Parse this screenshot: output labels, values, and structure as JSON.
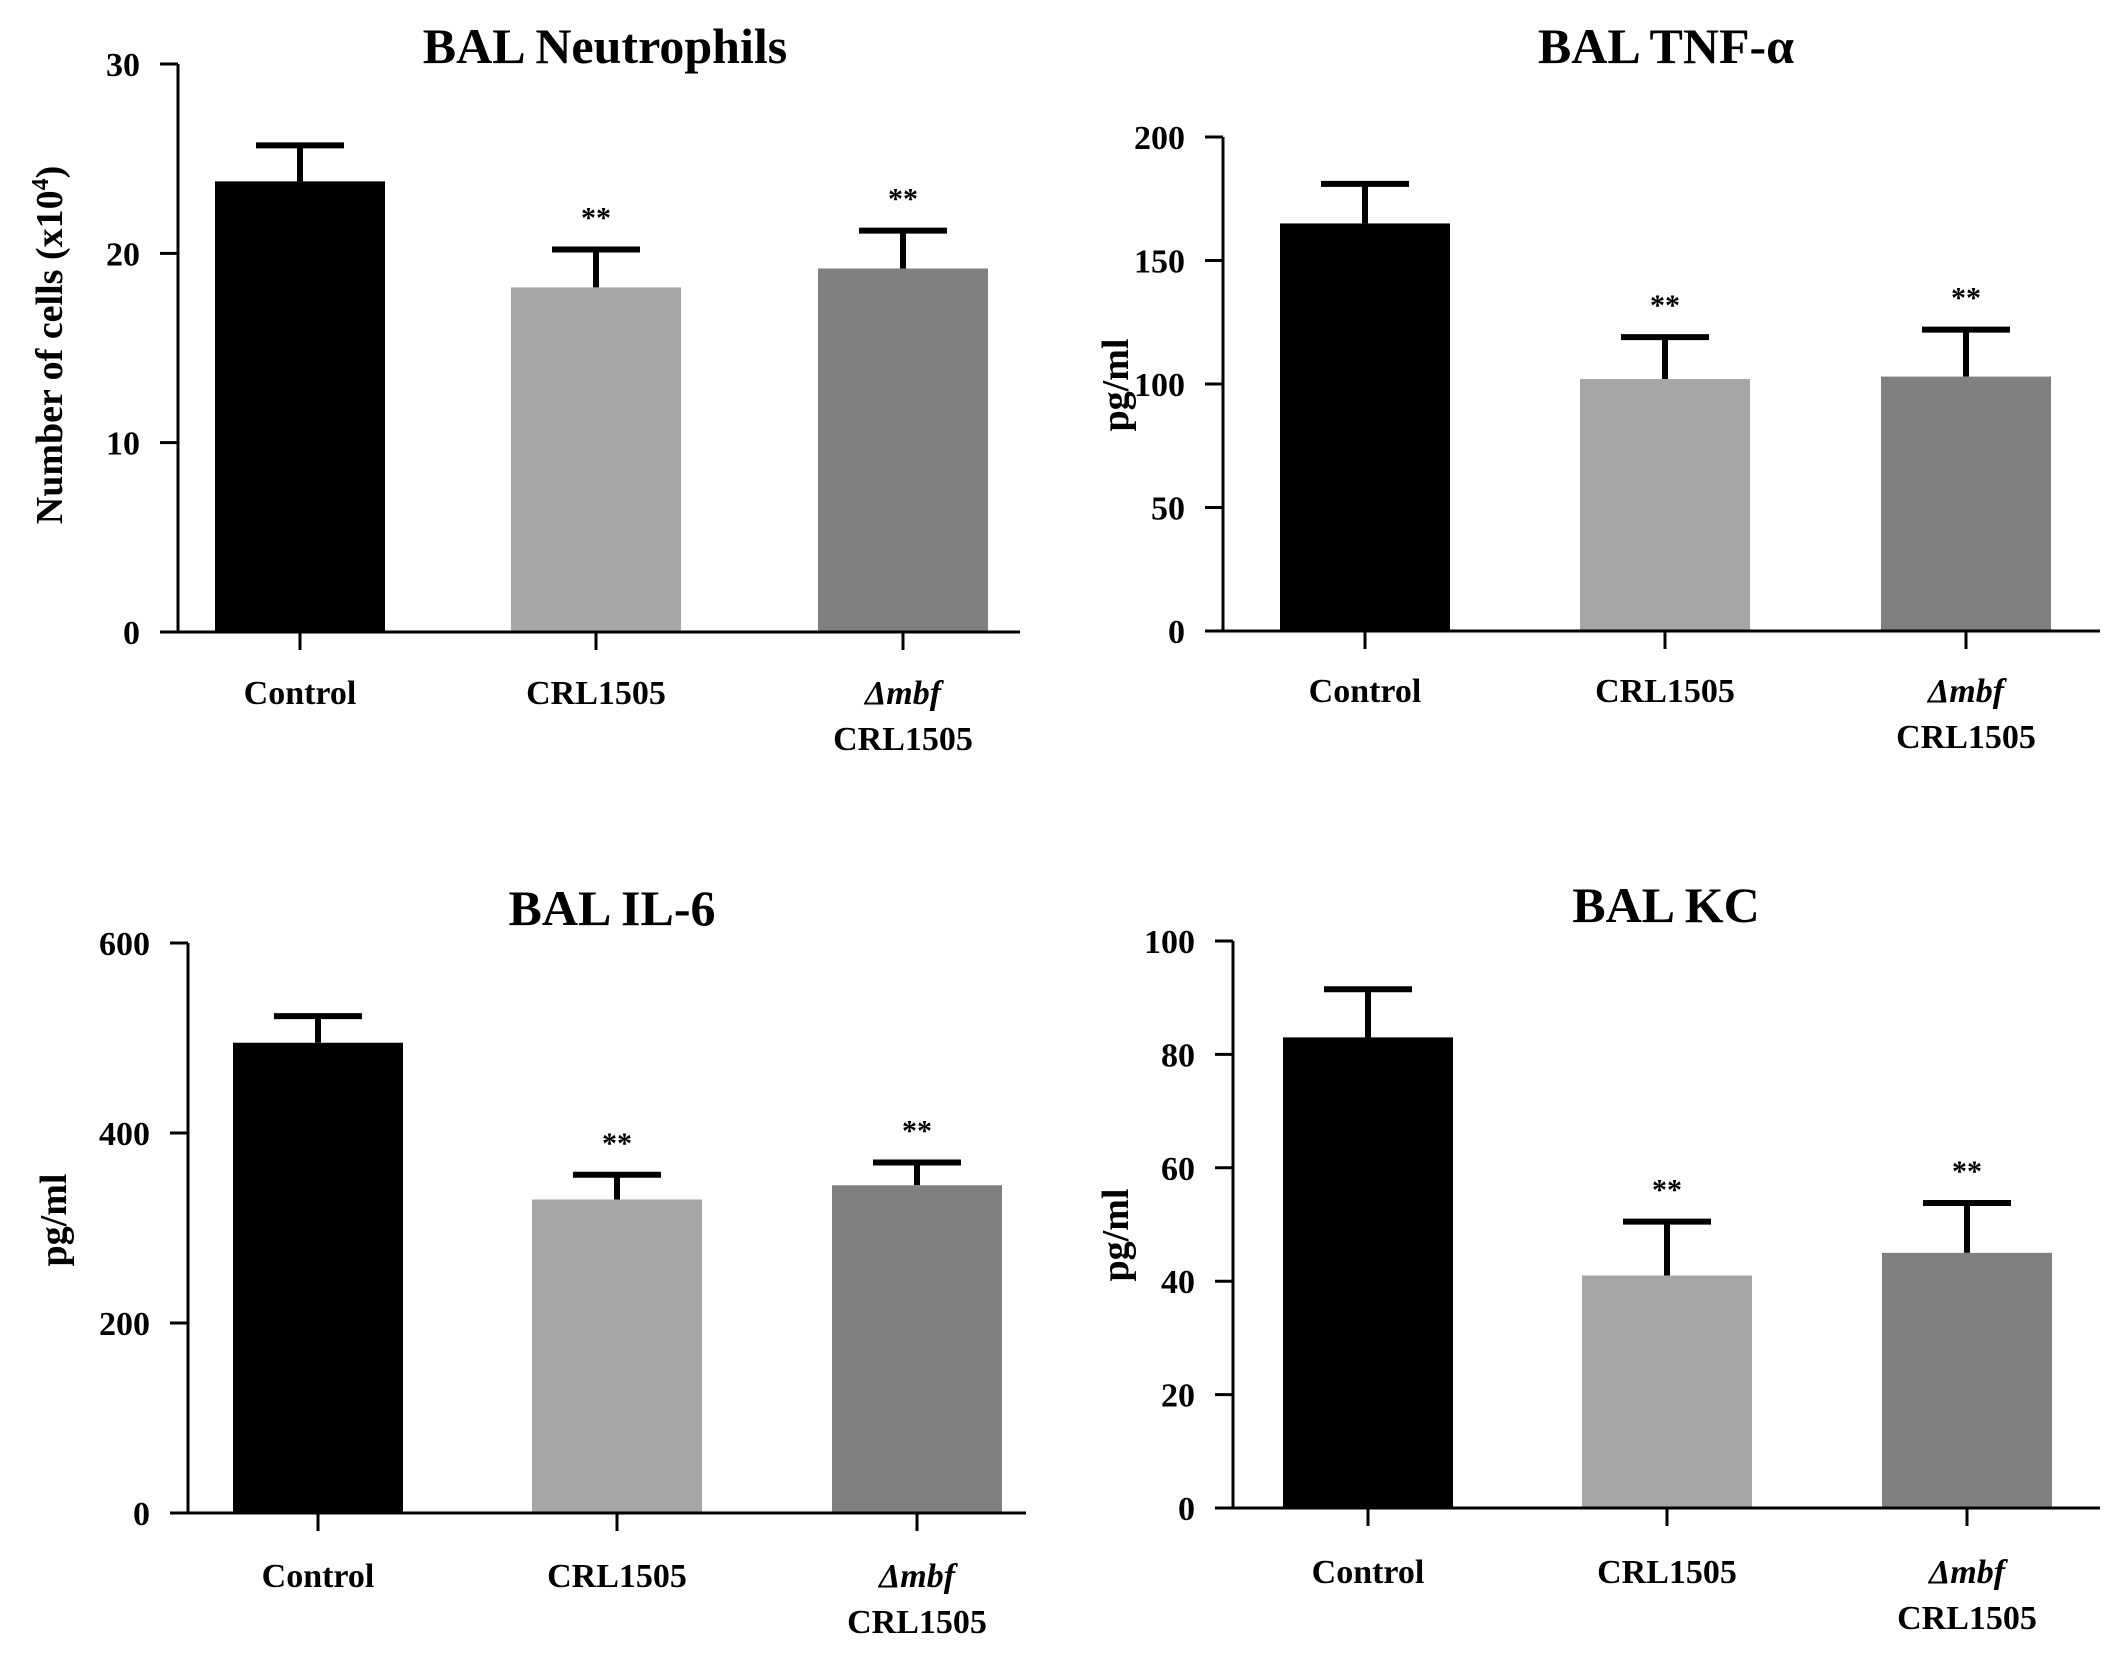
{
  "chart_data": [
    {
      "type": "bar",
      "title": "BAL Neutrophils",
      "ylabel": "Number of cells (x10",
      "ylabel_superscript": "4",
      "ylabel_suffix": ")",
      "xlabel": "",
      "ylim": [
        0,
        30
      ],
      "yticks": [
        0,
        10,
        20,
        30
      ],
      "categories": [
        "Control",
        "CRL1505",
        "Δmbf CRL1505"
      ],
      "category_lines": [
        [
          "Control"
        ],
        [
          "CRL1505"
        ],
        [
          "Δmbf",
          "CRL1505"
        ]
      ],
      "values": [
        23.8,
        18.2,
        19.2
      ],
      "errors": [
        1.9,
        2.0,
        2.0
      ],
      "significance": [
        "",
        "**",
        "**"
      ],
      "colors": [
        "#000000",
        "#a6a6a8",
        "#808080"
      ]
    },
    {
      "type": "bar",
      "title": "BAL TNF-α",
      "ylabel": "pg/ml",
      "xlabel": "",
      "ylim": [
        0,
        200
      ],
      "yticks": [
        0,
        50,
        100,
        150,
        200
      ],
      "categories": [
        "Control",
        "CRL1505",
        "Δmbf CRL1505"
      ],
      "category_lines": [
        [
          "Control"
        ],
        [
          "CRL1505"
        ],
        [
          "Δmbf",
          "CRL1505"
        ]
      ],
      "values": [
        165,
        102,
        103
      ],
      "errors": [
        16,
        17,
        19
      ],
      "significance": [
        "",
        "**",
        "**"
      ],
      "colors": [
        "#000000",
        "#a6a6a8",
        "#808080"
      ]
    },
    {
      "type": "bar",
      "title": "BAL IL-6",
      "ylabel": "pg/ml",
      "xlabel": "",
      "ylim": [
        0,
        600
      ],
      "yticks": [
        0,
        200,
        400,
        600
      ],
      "categories": [
        "Control",
        "CRL1505",
        "Δmbf CRL1505"
      ],
      "category_lines": [
        [
          "Control"
        ],
        [
          "CRL1505"
        ],
        [
          "Δmbf",
          "CRL1505"
        ]
      ],
      "values": [
        495,
        330,
        345
      ],
      "errors": [
        28,
        26,
        24
      ],
      "significance": [
        "",
        "**",
        "**"
      ],
      "colors": [
        "#000000",
        "#a6a6a8",
        "#808080"
      ]
    },
    {
      "type": "bar",
      "title": "BAL KC",
      "ylabel": "pg/ml",
      "xlabel": "",
      "ylim": [
        0,
        100
      ],
      "yticks": [
        0,
        20,
        40,
        60,
        80,
        100
      ],
      "categories": [
        "Control",
        "CRL1505",
        "Δmbf CRL1505"
      ],
      "category_lines": [
        [
          "Control"
        ],
        [
          "CRL1505"
        ],
        [
          "Δmbf",
          "CRL1505"
        ]
      ],
      "values": [
        83,
        41,
        45
      ],
      "errors": [
        8.5,
        9.5,
        8.8
      ],
      "significance": [
        "",
        "**",
        "**"
      ],
      "colors": [
        "#000000",
        "#a6a6a8",
        "#808080"
      ]
    }
  ]
}
